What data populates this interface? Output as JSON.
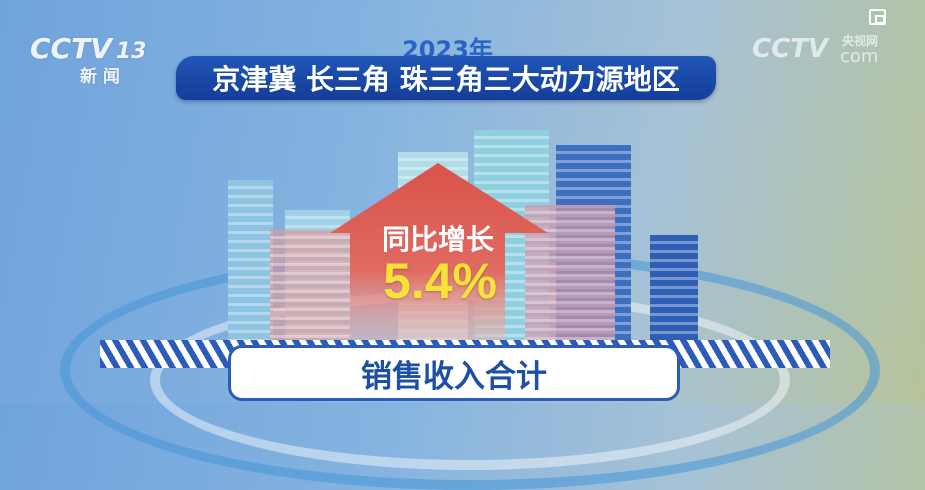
{
  "top_icon": "picture-in-picture-icon",
  "channel_logo": {
    "brand": "CCTV",
    "number": "13",
    "subtitle": "新 闻"
  },
  "watermark": {
    "brand": "CCTV",
    "cn": "央视网",
    "domain": "com"
  },
  "year": "2023年",
  "title": "京津冀 长三角 珠三角三大动力源地区",
  "arrow": {
    "label": "同比增长",
    "value": "5.4%"
  },
  "caption": "销售收入合计",
  "colors": {
    "title_bg": "#1a47a8",
    "arrow": "#d9534a",
    "value": "#f7e23a",
    "caption_text": "#1e4fa6"
  }
}
